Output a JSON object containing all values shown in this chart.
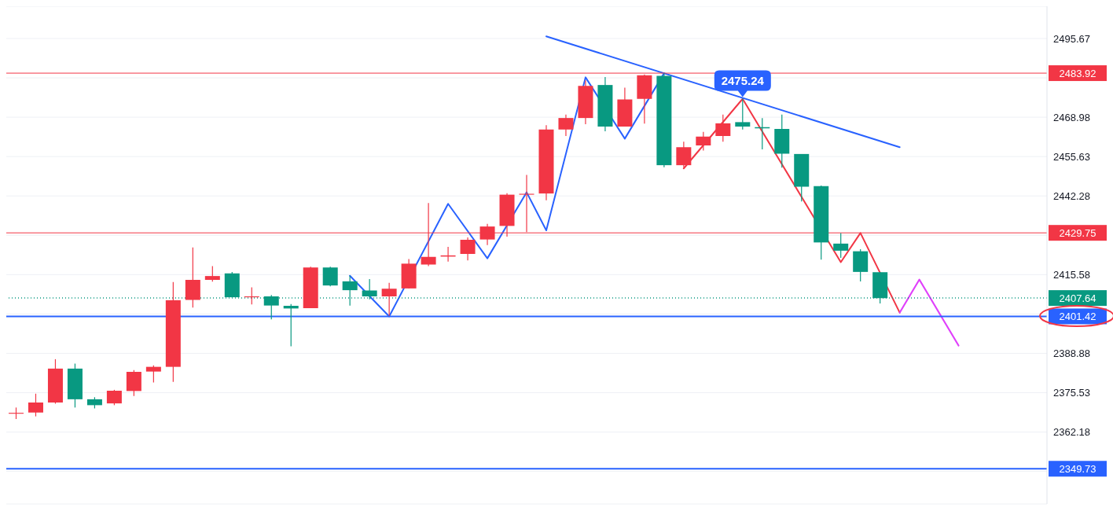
{
  "chart_data": {
    "type": "candlestick",
    "categories": [
      null,
      null,
      null,
      null,
      null,
      null,
      null,
      null,
      null,
      null,
      null,
      null,
      null,
      null,
      null,
      null,
      null,
      null,
      null,
      null,
      null,
      null,
      null,
      null,
      null,
      null,
      null,
      null,
      null,
      null,
      null,
      null,
      null,
      null,
      null,
      null,
      null,
      null,
      null,
      null,
      null,
      null,
      null,
      null,
      null,
      null,
      null,
      null,
      null,
      null,
      null,
      null,
      null
    ],
    "ohlc": [
      [
        2368.4,
        2370.5,
        2366.6,
        2368.7
      ],
      [
        2368.8,
        2375.2,
        2367.5,
        2372.2
      ],
      [
        2372.2,
        2386.9,
        2371.8,
        2383.7
      ],
      [
        2383.7,
        2385.4,
        2370.5,
        2373.3
      ],
      [
        2373.3,
        2374.0,
        2370.2,
        2371.3
      ],
      [
        2371.9,
        2376.5,
        2371.3,
        2376.2
      ],
      [
        2376.1,
        2383.2,
        2374.4,
        2382.6
      ],
      [
        2382.7,
        2384.8,
        2379.0,
        2384.3
      ],
      [
        2384.3,
        2413.1,
        2379.2,
        2406.9
      ],
      [
        2407.0,
        2424.8,
        2404.4,
        2413.8
      ],
      [
        2413.8,
        2418.5,
        2413.2,
        2415.1
      ],
      [
        2416.0,
        2416.5,
        2407.9,
        2407.9
      ],
      [
        2407.9,
        2411.3,
        2405.5,
        2408.2
      ],
      [
        2408.2,
        2408.7,
        2400.4,
        2405.1
      ],
      [
        2405.0,
        2405.6,
        2391.3,
        2404.1
      ],
      [
        2404.2,
        2418.3,
        2404.2,
        2418.0
      ],
      [
        2418.0,
        2418.3,
        2411.6,
        2411.9
      ],
      [
        2413.3,
        2415.2,
        2405.1,
        2410.3
      ],
      [
        2410.2,
        2414.1,
        2407.2,
        2408.2
      ],
      [
        2408.2,
        2412.8,
        2401.6,
        2410.8
      ],
      [
        2410.9,
        2420.9,
        2410.9,
        2419.3
      ],
      [
        2419.0,
        2439.9,
        2418.5,
        2421.6
      ],
      [
        2421.7,
        2425.0,
        2420.0,
        2422.1
      ],
      [
        2422.6,
        2428.2,
        2420.4,
        2427.4
      ],
      [
        2427.5,
        2432.8,
        2425.6,
        2431.9
      ],
      [
        2432.1,
        2443.2,
        2428.5,
        2442.7
      ],
      [
        2442.7,
        2449.4,
        2430.0,
        2443.0
      ],
      [
        2443.1,
        2466.3,
        2440.8,
        2464.8
      ],
      [
        2464.8,
        2469.9,
        2462.6,
        2468.7
      ],
      [
        2468.7,
        2481.5,
        2466.6,
        2479.6
      ],
      [
        2479.9,
        2482.6,
        2464.2,
        2465.8
      ],
      [
        2465.8,
        2479.0,
        2465.8,
        2475.0
      ],
      [
        2475.2,
        2483.5,
        2466.8,
        2483.2
      ],
      [
        2483.0,
        2483.9,
        2452.0,
        2452.7
      ],
      [
        2452.7,
        2460.7,
        2452.0,
        2458.8
      ],
      [
        2459.4,
        2464.0,
        2457.7,
        2462.4
      ],
      [
        2462.6,
        2469.9,
        2460.7,
        2466.9
      ],
      [
        2467.3,
        2475.24,
        2464.8,
        2465.8
      ],
      [
        2465.6,
        2468.7,
        2458.1,
        2465.2
      ],
      [
        2465.0,
        2469.9,
        2451.9,
        2456.6
      ],
      [
        2456.5,
        2456.5,
        2440.4,
        2445.4
      ],
      [
        2445.6,
        2445.8,
        2420.7,
        2426.5
      ],
      [
        2426.1,
        2429.7,
        2421.3,
        2423.7
      ],
      [
        2423.5,
        2424.2,
        2413.3,
        2416.5
      ],
      [
        2416.4,
        2416.4,
        2405.8,
        2407.6
      ],
      null,
      null,
      null,
      null,
      null,
      null,
      null,
      null
    ],
    "colors": [
      "#f23645",
      "#f23645",
      "#f23645",
      "#089981",
      "#089981",
      "#f23645",
      "#f23645",
      "#f23645",
      "#f23645",
      "#f23645",
      "#f23645",
      "#089981",
      "#f23645",
      "#089981",
      "#089981",
      "#f23645",
      "#089981",
      "#089981",
      "#089981",
      "#f23645",
      "#f23645",
      "#f23645",
      "#f23645",
      "#f23645",
      "#f23645",
      "#f23645",
      "#f23645",
      "#f23645",
      "#f23645",
      "#f23645",
      "#089981",
      "#f23645",
      "#f23645",
      "#089981",
      "#f23645",
      "#f23645",
      "#f23645",
      "#089981",
      "#089981",
      "#089981",
      "#089981",
      "#089981",
      "#089981",
      "#089981",
      "#089981",
      null,
      null,
      null,
      null,
      null,
      null,
      null,
      null
    ],
    "series": [
      {
        "type": "line",
        "color": "#2962ff",
        "values": [
          null,
          null,
          null,
          null,
          null,
          null,
          null,
          null,
          null,
          null,
          null,
          null,
          null,
          null,
          null,
          null,
          null,
          2415.2,
          null,
          2401.4,
          null,
          null,
          2439.6,
          null,
          2421.1,
          null,
          2443.5,
          2430.6,
          null,
          2482.5,
          null,
          2461.7,
          null,
          2483.9,
          null,
          null,
          null,
          null,
          null,
          null,
          null,
          null,
          null,
          null,
          null,
          null,
          null,
          null,
          null,
          null,
          null,
          null,
          null
        ]
      },
      {
        "type": "line",
        "color": "#f23645",
        "values": [
          null,
          null,
          null,
          null,
          null,
          null,
          null,
          null,
          null,
          null,
          null,
          null,
          null,
          null,
          null,
          null,
          null,
          null,
          null,
          null,
          null,
          null,
          null,
          null,
          null,
          null,
          null,
          null,
          null,
          null,
          null,
          null,
          null,
          null,
          2451.6,
          null,
          null,
          2475.2,
          null,
          null,
          null,
          null,
          2419.8,
          2429.7,
          null,
          2402.7,
          null,
          null,
          null,
          null,
          null,
          null,
          null
        ]
      },
      {
        "type": "line",
        "color": "#e040fb",
        "values": [
          null,
          null,
          null,
          null,
          null,
          null,
          null,
          null,
          null,
          null,
          null,
          null,
          null,
          null,
          null,
          null,
          null,
          null,
          null,
          null,
          null,
          null,
          null,
          null,
          null,
          null,
          null,
          null,
          null,
          null,
          null,
          null,
          null,
          null,
          null,
          null,
          null,
          null,
          null,
          null,
          null,
          null,
          null,
          null,
          null,
          2402.7,
          2413.9,
          null,
          2391.5,
          null,
          null,
          null,
          null
        ]
      },
      {
        "type": "line",
        "color": "#2962ff",
        "values": [
          null,
          null,
          null,
          null,
          null,
          null,
          null,
          null,
          null,
          null,
          null,
          null,
          null,
          null,
          null,
          null,
          null,
          null,
          null,
          null,
          null,
          null,
          null,
          null,
          null,
          null,
          null,
          2496.4,
          null,
          null,
          null,
          null,
          null,
          null,
          null,
          null,
          null,
          null,
          null,
          null,
          null,
          null,
          null,
          null,
          null,
          2458.8,
          null,
          null,
          null,
          null,
          null,
          null,
          null
        ]
      }
    ],
    "ylim": [
      2337.8,
      2506.6
    ],
    "yticks": [
      {
        "value": 2348.83,
        "label": null
      },
      2362.18,
      2375.53,
      2388.88,
      {
        "value": 2402.23,
        "label": null
      },
      2415.58,
      {
        "value": 2428.93,
        "label": null
      },
      2442.28,
      2455.63,
      2468.98,
      {
        "value": 2482.32,
        "label": null
      },
      2495.67
    ],
    "tick_labels": "y",
    "grid": "y",
    "ref_lines": [
      {
        "axis": "y",
        "value": 2483.92,
        "label": "2483.92",
        "color": "#f23645",
        "line_style": "solid"
      },
      {
        "axis": "y",
        "value": 2429.75,
        "label": "2429.75",
        "color": "#f23645",
        "line_style": "solid"
      },
      {
        "axis": "y",
        "value": 2407.64,
        "label": "2407.64",
        "color": "#089981",
        "line_style": "dotted"
      },
      {
        "axis": "y",
        "value": 2401.42,
        "label": "2401.42",
        "color": "#2962ff",
        "line_style": "solid"
      },
      {
        "axis": "y",
        "value": 2349.73,
        "label": "2349.73",
        "color": "#2962ff",
        "line_style": "solid"
      }
    ],
    "annotations": [
      {
        "text": "2475.24",
        "y": 2475.24
      }
    ]
  }
}
